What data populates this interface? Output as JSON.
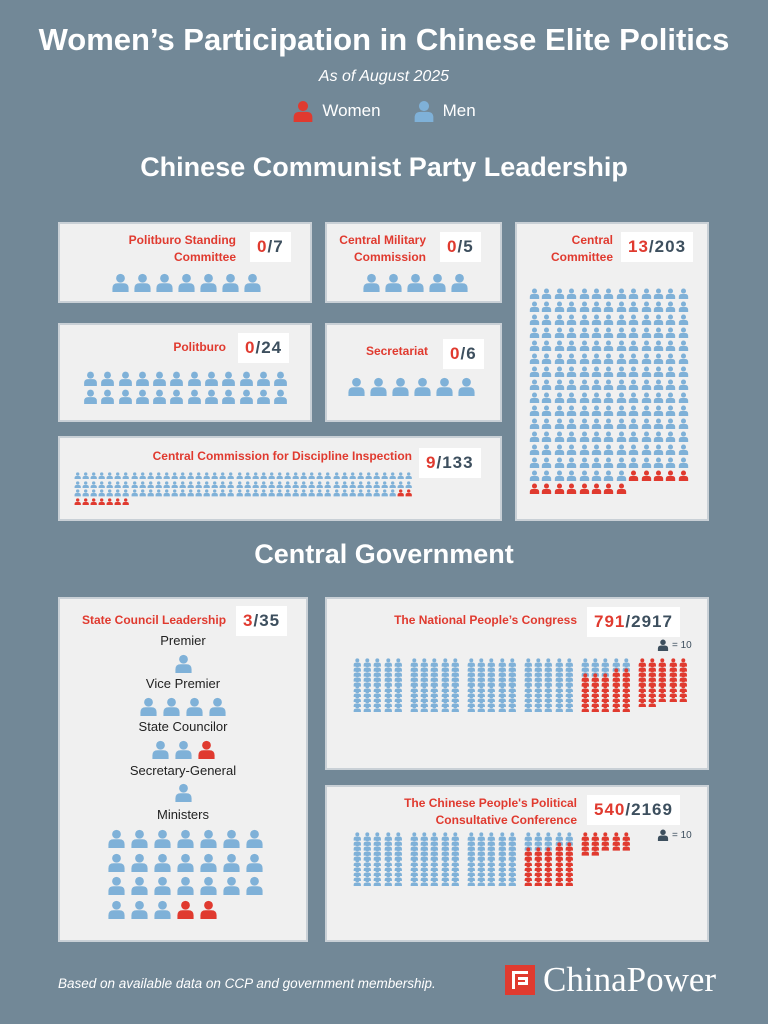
{
  "title": "Women’s Participation in Chinese Elite Politics",
  "subtitle": "As of August 2025",
  "legend": {
    "women": "Women",
    "men": "Men"
  },
  "colors": {
    "women": "#e03a2f",
    "men": "#7fb1d8",
    "scale_icon": "#3d4f5e",
    "background": "#728897",
    "panel": "#f0f0f0"
  },
  "sections": {
    "party": "Chinese Communist Party Leadership",
    "government": "Central Government"
  },
  "panels": {
    "psc": {
      "label": "Politburo Standing Committee",
      "women": 0,
      "total": 7
    },
    "cmc": {
      "label": "Central Military Commission",
      "women": 0,
      "total": 5
    },
    "cc": {
      "label": "Central Committee",
      "women": 13,
      "total": 203
    },
    "politburo": {
      "label": "Politburo",
      "women": 0,
      "total": 24
    },
    "secretariat": {
      "label": "Secretariat",
      "women": 0,
      "total": 6
    },
    "ccdi": {
      "label": "Central Commission for Discipline Inspection",
      "women": 9,
      "total": 133
    },
    "state_council": {
      "label": "State Council Leadership",
      "women": 3,
      "total": 35,
      "roles": [
        {
          "name": "Premier",
          "men": 1,
          "women": 0
        },
        {
          "name": "Vice Premier",
          "men": 4,
          "women": 0
        },
        {
          "name": "State Councilor",
          "men": 2,
          "women": 1
        },
        {
          "name": "Secretary-General",
          "men": 1,
          "women": 0
        },
        {
          "name": "Ministers",
          "men": 24,
          "women": 2
        }
      ]
    },
    "npc": {
      "label": "The National People’s Congress",
      "women": 791,
      "total": 2917,
      "scale": "= 10"
    },
    "cppcc": {
      "label": "The Chinese People's Political Consultative Conference",
      "women": 540,
      "total": 2169,
      "scale": "= 10"
    }
  },
  "counts": {
    "psc": {
      "women": "0",
      "total": "7"
    },
    "cmc": {
      "women": "0",
      "total": "5"
    },
    "cc": {
      "women": "13",
      "total": "203"
    },
    "politburo": {
      "women": "0",
      "total": "24"
    },
    "secretariat": {
      "women": "0",
      "total": "6"
    },
    "ccdi": {
      "women": "9",
      "total": "133"
    },
    "state_council": {
      "women": "3",
      "total": "35"
    },
    "npc": {
      "women": "791",
      "total": "2917"
    },
    "cppcc": {
      "women": "540",
      "total": "2169"
    }
  },
  "footnote": "Based on available data on CCP and government membership.",
  "logo": "ChinaPower"
}
